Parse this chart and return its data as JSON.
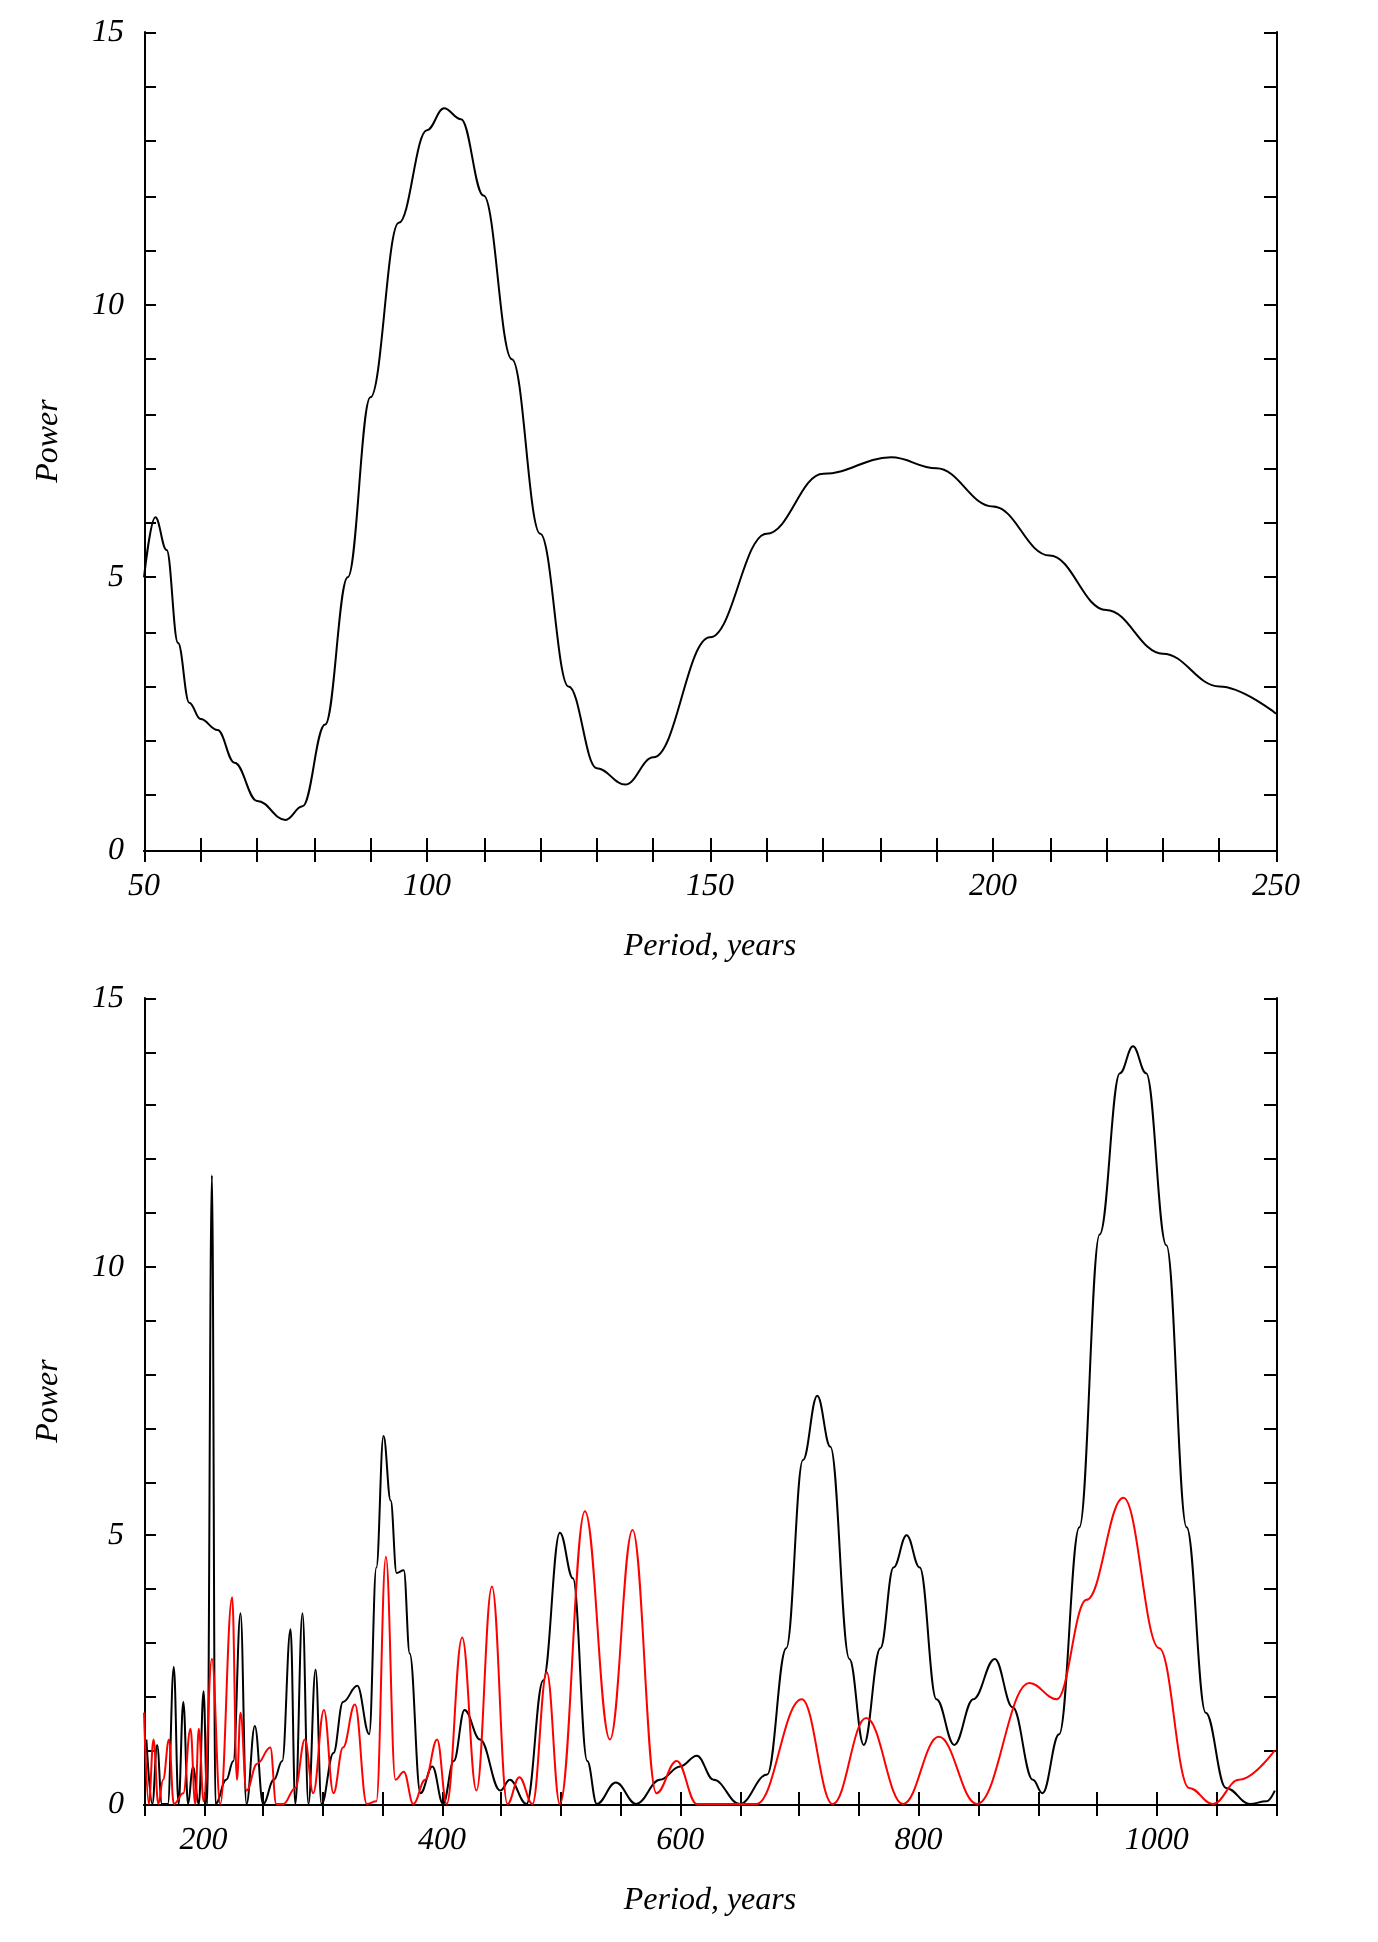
{
  "chart_data": [
    {
      "type": "line",
      "xlabel": "Period, years",
      "ylabel": "Power",
      "color": "#000000",
      "x": [
        50,
        52,
        54,
        56,
        58,
        60,
        63,
        66,
        70,
        75,
        78,
        82,
        86,
        90,
        95,
        100,
        103,
        106,
        110,
        115,
        120,
        125,
        130,
        135,
        140,
        150,
        160,
        170,
        182,
        190,
        200,
        210,
        220,
        230,
        240,
        250
      ],
      "values": [
        5.0,
        6.1,
        5.5,
        3.8,
        2.7,
        2.4,
        2.2,
        1.6,
        0.9,
        0.55,
        0.8,
        2.3,
        5.0,
        8.3,
        11.5,
        13.2,
        13.6,
        13.4,
        12.0,
        9.0,
        5.8,
        3.0,
        1.5,
        1.2,
        1.7,
        3.9,
        5.8,
        6.9,
        7.2,
        7.0,
        6.3,
        5.4,
        4.4,
        3.6,
        3.0,
        2.5
      ],
      "xlim": [
        50,
        250
      ],
      "xticks": [
        50,
        {
          "value": 60,
          "label": null
        },
        {
          "value": 70,
          "label": null
        },
        {
          "value": 80,
          "label": null
        },
        {
          "value": 90,
          "label": null
        },
        100,
        {
          "value": 110,
          "label": null
        },
        {
          "value": 120,
          "label": null
        },
        {
          "value": 130,
          "label": null
        },
        {
          "value": 140,
          "label": null
        },
        150,
        {
          "value": 160,
          "label": null
        },
        {
          "value": 170,
          "label": null
        },
        {
          "value": 180,
          "label": null
        },
        {
          "value": 190,
          "label": null
        },
        200,
        {
          "value": 210,
          "label": null
        },
        {
          "value": 220,
          "label": null
        },
        {
          "value": 230,
          "label": null
        },
        {
          "value": 240,
          "label": null
        },
        250
      ],
      "ylim": [
        0,
        15
      ],
      "yticks": [
        0,
        {
          "value": 1,
          "label": null
        },
        {
          "value": 2,
          "label": null
        },
        {
          "value": 3,
          "label": null
        },
        {
          "value": 4,
          "label": null
        },
        5,
        {
          "value": 6,
          "label": null
        },
        {
          "value": 7,
          "label": null
        },
        {
          "value": 8,
          "label": null
        },
        {
          "value": 9,
          "label": null
        },
        10,
        {
          "value": 11,
          "label": null
        },
        {
          "value": 12,
          "label": null
        },
        {
          "value": 13,
          "label": null
        },
        {
          "value": 14,
          "label": null
        },
        15
      ]
    },
    {
      "type": "line",
      "xlabel": "Period, years",
      "ylabel": "Power",
      "series": [
        {
          "color": "#000000",
          "x": [
            152,
            157,
            161,
            165,
            170,
            175,
            179,
            183,
            187,
            191,
            196,
            200,
            203,
            207,
            210,
            219,
            225,
            231,
            236,
            243,
            250,
            259,
            266,
            273,
            277,
            283,
            288,
            294,
            299,
            309,
            317,
            329,
            339,
            345,
            351,
            357,
            362,
            368,
            373,
            382,
            392,
            401,
            410,
            419,
            432,
            449,
            457,
            471,
            485,
            499,
            510,
            522,
            530,
            546,
            563,
            583,
            600,
            614,
            628,
            650,
            673,
            689,
            703,
            715,
            726,
            742,
            754,
            768,
            779,
            790,
            801,
            815,
            830,
            846,
            864,
            879,
            896,
            904,
            918,
            935,
            952,
            969,
            980,
            991,
            1008,
            1025,
            1041,
            1058,
            1078,
            1092,
            1099
          ],
          "values": [
            1.2,
            0,
            1.1,
            0,
            0,
            2.55,
            0,
            1.9,
            0,
            0.7,
            0,
            2.1,
            0,
            11.7,
            0,
            0.45,
            0.8,
            3.55,
            0,
            1.45,
            0,
            0.45,
            0.8,
            3.25,
            0,
            3.55,
            0,
            2.5,
            0,
            0.95,
            1.9,
            2.2,
            1.3,
            4.4,
            6.85,
            5.65,
            4.3,
            4.35,
            2.8,
            0.2,
            0.7,
            0,
            0.8,
            1.75,
            1.2,
            0.25,
            0.45,
            0,
            2.3,
            5.05,
            4.2,
            0.8,
            0,
            0.4,
            0,
            0.45,
            0.7,
            0.9,
            0.45,
            0,
            0.55,
            2.9,
            6.4,
            7.6,
            6.65,
            2.7,
            1.1,
            2.9,
            4.4,
            5.0,
            4.4,
            1.95,
            1.1,
            1.95,
            2.7,
            1.8,
            0.45,
            0.2,
            1.3,
            5.15,
            10.6,
            13.6,
            14.1,
            13.6,
            10.4,
            5.15,
            1.7,
            0.3,
            0,
            0.05,
            0.25
          ]
        },
        {
          "color": "#ff0000",
          "x": [
            150,
            154,
            158,
            162,
            166,
            171,
            175,
            183,
            189,
            193,
            196,
            200,
            207,
            214,
            224,
            228,
            231,
            236,
            245,
            256,
            261,
            267,
            277,
            285,
            292,
            301,
            309,
            317,
            327,
            337,
            345,
            353,
            361,
            368,
            376,
            386,
            396,
            404,
            417,
            429,
            442,
            455,
            465,
            476,
            488,
            499,
            520,
            541,
            560,
            580,
            597,
            614,
            633,
            664,
            702,
            728,
            756,
            787,
            817,
            849,
            893,
            916,
            941,
            972,
            1002,
            1027,
            1047,
            1069,
            1099
          ],
          "values": [
            1.7,
            0,
            1.2,
            0,
            0.45,
            1.2,
            0,
            0.2,
            1.4,
            0,
            1.4,
            0.05,
            2.7,
            0,
            3.85,
            0.45,
            1.7,
            0.25,
            0.75,
            1.05,
            0,
            0,
            0.3,
            1.2,
            0.2,
            1.75,
            0.2,
            1.05,
            1.85,
            0,
            0.05,
            4.6,
            0.45,
            0.6,
            0,
            0.45,
            1.2,
            0,
            3.1,
            0.25,
            4.05,
            0,
            0.5,
            0,
            2.45,
            0,
            5.45,
            1.2,
            5.1,
            0.2,
            0.8,
            0,
            0,
            0,
            1.95,
            0,
            1.6,
            0,
            1.25,
            0,
            2.25,
            1.95,
            3.8,
            5.7,
            2.9,
            0.3,
            0,
            0.45,
            1.0
          ]
        }
      ],
      "xlim": [
        150,
        1100
      ],
      "xticks": [
        {
          "value": 150,
          "label": null
        },
        200,
        {
          "value": 250,
          "label": null
        },
        {
          "value": 300,
          "label": null
        },
        {
          "value": 350,
          "label": null
        },
        400,
        {
          "value": 450,
          "label": null
        },
        {
          "value": 500,
          "label": null
        },
        {
          "value": 550,
          "label": null
        },
        600,
        {
          "value": 650,
          "label": null
        },
        {
          "value": 700,
          "label": null
        },
        {
          "value": 750,
          "label": null
        },
        800,
        {
          "value": 850,
          "label": null
        },
        {
          "value": 900,
          "label": null
        },
        {
          "value": 950,
          "label": null
        },
        1000,
        {
          "value": 1050,
          "label": null
        },
        {
          "value": 1100,
          "label": null
        }
      ],
      "ylim": [
        0,
        15
      ],
      "yticks": [
        0,
        {
          "value": 1,
          "label": null
        },
        {
          "value": 2,
          "label": null
        },
        {
          "value": 3,
          "label": null
        },
        {
          "value": 4,
          "label": null
        },
        5,
        {
          "value": 6,
          "label": null
        },
        {
          "value": 7,
          "label": null
        },
        {
          "value": 8,
          "label": null
        },
        {
          "value": 9,
          "label": null
        },
        10,
        {
          "value": 11,
          "label": null
        },
        {
          "value": 12,
          "label": null
        },
        {
          "value": 13,
          "label": null
        },
        {
          "value": 14,
          "label": null
        },
        15
      ]
    }
  ]
}
